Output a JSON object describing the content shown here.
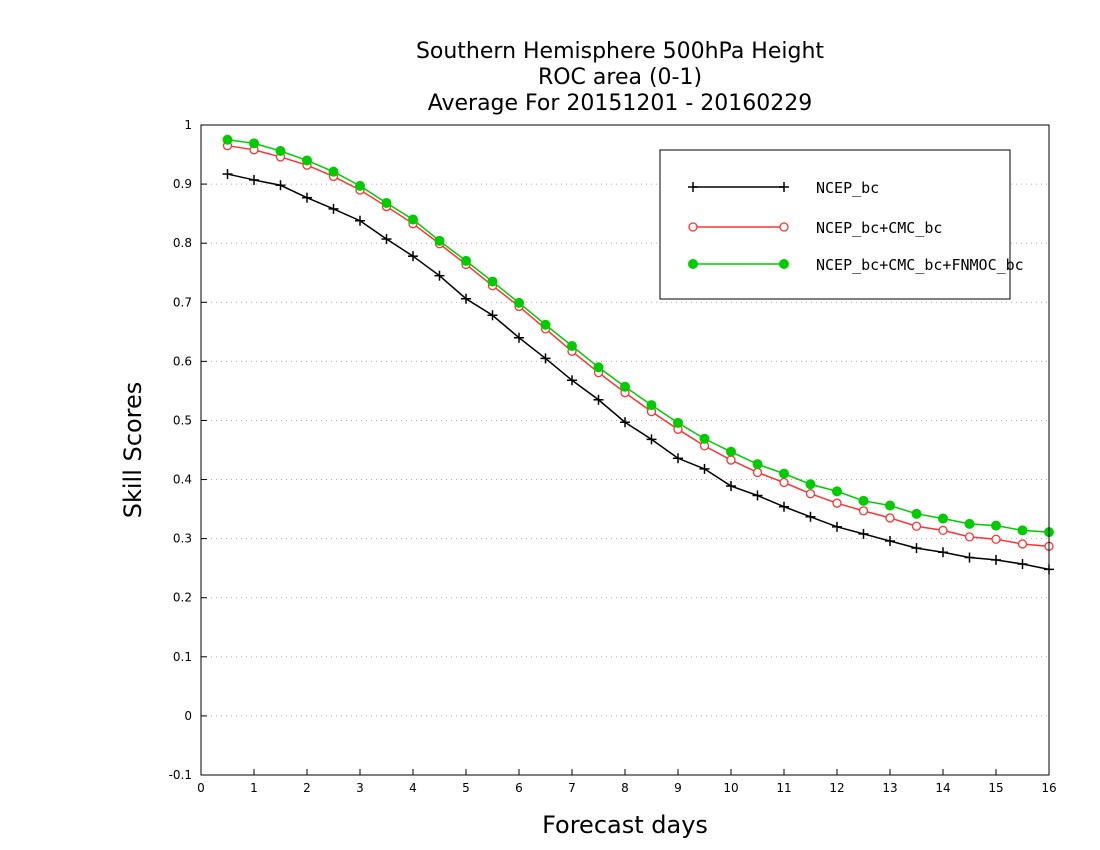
{
  "chart_data": {
    "type": "line",
    "title": [
      "Southern Hemisphere 500hPa Height",
      "ROC area (0-1)",
      "Average For 20151201 - 20160229"
    ],
    "xlabel": "Forecast days",
    "ylabel": "Skill Scores",
    "xlim": [
      0,
      16
    ],
    "ylim": [
      -0.1,
      1
    ],
    "xticks": [
      "0",
      "1",
      "2",
      "3",
      "4",
      "5",
      "6",
      "7",
      "8",
      "9",
      "10",
      "11",
      "12",
      "13",
      "14",
      "15",
      "16"
    ],
    "yticks": [
      "-0.1",
      "0",
      "0.1",
      "0.2",
      "0.3",
      "0.4",
      "0.5",
      "0.6",
      "0.7",
      "0.8",
      "0.9",
      "1"
    ],
    "grid": true,
    "legend_position": "top-right",
    "x": [
      0.5,
      1,
      1.5,
      2,
      2.5,
      3,
      3.5,
      4,
      4.5,
      5,
      5.5,
      6,
      6.5,
      7,
      7.5,
      8,
      8.5,
      9,
      9.5,
      10,
      10.5,
      11,
      11.5,
      12,
      12.5,
      13,
      13.5,
      14,
      14.5,
      15,
      15.5,
      16
    ],
    "series": [
      {
        "name": "NCEP_bc",
        "color": "#000000",
        "marker": "plus",
        "values": [
          0.917,
          0.907,
          0.898,
          0.877,
          0.858,
          0.838,
          0.807,
          0.778,
          0.745,
          0.706,
          0.678,
          0.64,
          0.605,
          0.568,
          0.535,
          0.497,
          0.468,
          0.436,
          0.418,
          0.389,
          0.373,
          0.354,
          0.337,
          0.32,
          0.308,
          0.296,
          0.284,
          0.277,
          0.268,
          0.264,
          0.257,
          0.248
        ]
      },
      {
        "name": "NCEP_bc+CMC_bc",
        "color": "#ff3333",
        "marker": "open-circle",
        "values": [
          0.965,
          0.958,
          0.946,
          0.932,
          0.913,
          0.89,
          0.862,
          0.833,
          0.799,
          0.764,
          0.728,
          0.693,
          0.655,
          0.617,
          0.581,
          0.547,
          0.515,
          0.485,
          0.457,
          0.433,
          0.412,
          0.395,
          0.376,
          0.36,
          0.347,
          0.335,
          0.321,
          0.314,
          0.303,
          0.299,
          0.291,
          0.287
        ]
      },
      {
        "name": "NCEP_bc+CMC_bc+FNMOC_bc",
        "color": "#00cc00",
        "marker": "filled-circle",
        "values": [
          0.975,
          0.969,
          0.956,
          0.94,
          0.921,
          0.897,
          0.868,
          0.84,
          0.804,
          0.77,
          0.735,
          0.699,
          0.662,
          0.626,
          0.59,
          0.557,
          0.526,
          0.496,
          0.469,
          0.447,
          0.426,
          0.41,
          0.392,
          0.38,
          0.364,
          0.356,
          0.342,
          0.334,
          0.325,
          0.322,
          0.314,
          0.311
        ]
      }
    ]
  }
}
